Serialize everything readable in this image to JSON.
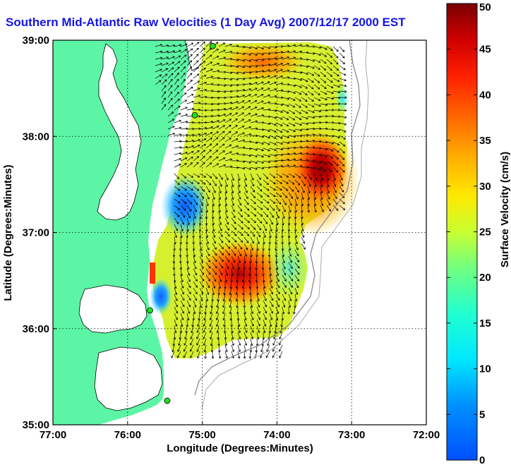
{
  "title": "Southern Mid-Atlantic Raw Velocities (1 Day Avg) 2007/12/17 2000 EST",
  "map": {
    "x_label": "Longitude (Degrees:Minutes)",
    "y_label": "Latitude (Degrees:Minutes)",
    "x_ticks": [
      "77:00",
      "76:00",
      "75:00",
      "74:00",
      "73:00",
      "72:00"
    ],
    "y_ticks": [
      "39:00",
      "38:00",
      "37:00",
      "36:00",
      "35:00"
    ],
    "lon_range": [
      -77,
      -72
    ],
    "lat_range": [
      35,
      39
    ],
    "grid": "dotted",
    "land_color": "#5cf5a5",
    "arrow_color": "#000000"
  },
  "colorbar": {
    "label": "Surface Velocity (cm/s)",
    "ticks": [
      "0",
      "5",
      "10",
      "15",
      "20",
      "25",
      "30",
      "35",
      "40",
      "45",
      "50"
    ],
    "min": 0,
    "max": 50,
    "colormap": "jet"
  },
  "stations": [
    {
      "lon": -74.86,
      "lat": 38.94
    },
    {
      "lon": -75.1,
      "lat": 38.22
    },
    {
      "lon": -75.7,
      "lat": 36.19
    },
    {
      "lon": -75.47,
      "lat": 35.25
    }
  ]
}
